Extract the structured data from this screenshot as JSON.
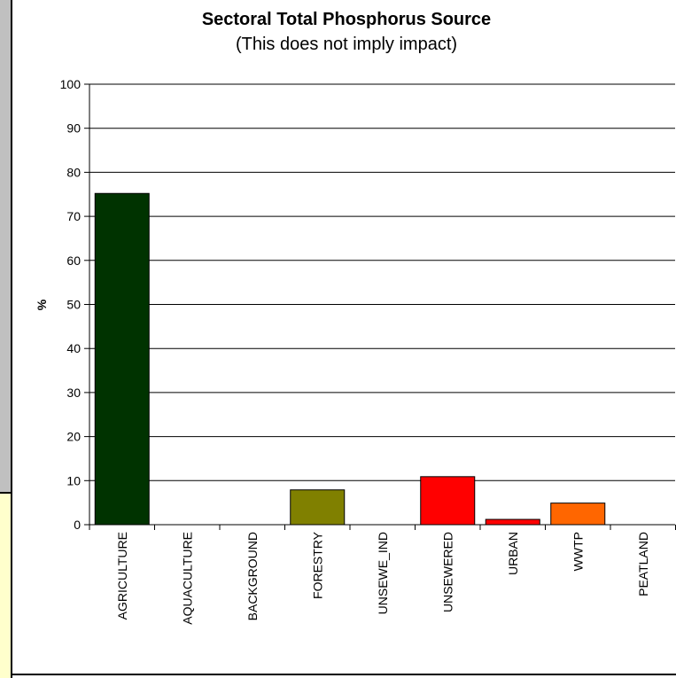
{
  "chart_data": {
    "type": "bar",
    "title": "Sectoral Total Phosphorus Source",
    "subtitle": "(This does not imply impact)",
    "xlabel": "",
    "ylabel": "%",
    "ylim": [
      0,
      100
    ],
    "yticks": [
      "0",
      "10",
      "20",
      "30",
      "40",
      "50",
      "60",
      "70",
      "80",
      "90",
      "100"
    ],
    "grid": true,
    "categories": [
      "AGRICULTURE",
      "AQUACULTURE",
      "BACKGROUND",
      "FORESTRY",
      "UNSEWE_IND",
      "UNSEWERED",
      "URBAN",
      "WWTP",
      "PEATLAND"
    ],
    "values": [
      75.2,
      0,
      0,
      7.9,
      0,
      10.9,
      1.2,
      4.9,
      0
    ],
    "colors": [
      "#003300",
      "#003300",
      "#003300",
      "#808000",
      "#808000",
      "#ff0000",
      "#ff0000",
      "#ff6600",
      "#ff6600"
    ]
  }
}
